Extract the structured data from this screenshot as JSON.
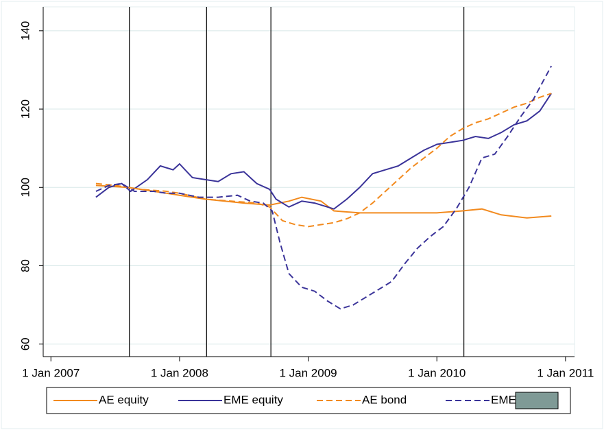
{
  "chart_data": {
    "type": "line",
    "xlim": [
      2006.94,
      2011.07
    ],
    "ylim": [
      56.8,
      146.1
    ],
    "xticks": [
      {
        "value": 2007,
        "label": "1 Jan 2007"
      },
      {
        "value": 2008,
        "label": "1 Jan 2008"
      },
      {
        "value": 2009,
        "label": "1 Jan 2009"
      },
      {
        "value": 2010,
        "label": "1 Jan 2010"
      },
      {
        "value": 2011,
        "label": "1 Jan 2011"
      }
    ],
    "yticks": [
      60,
      80,
      100,
      120,
      140
    ],
    "grid": true,
    "event_lines": [
      2007.61,
      2008.21,
      2008.71,
      2010.21
    ],
    "series": [
      {
        "name": "AE equity",
        "color": "#f28a1e",
        "dash": false,
        "x": [
          2007.35,
          2007.6,
          2008.0,
          2008.2,
          2008.5,
          2008.7,
          2008.85,
          2008.95,
          2009.1,
          2009.2,
          2009.4,
          2009.6,
          2009.8,
          2010.0,
          2010.2,
          2010.35,
          2010.5,
          2010.7,
          2010.89
        ],
        "values": [
          100.5,
          100,
          98,
          97,
          96,
          95.5,
          96.5,
          97.5,
          96.5,
          94,
          93.5,
          93.5,
          93.5,
          93.5,
          94,
          94.5,
          93,
          92.2,
          92.7
        ]
      },
      {
        "name": "EME equity",
        "color": "#3a3399",
        "dash": false,
        "x": [
          2007.35,
          2007.45,
          2007.55,
          2007.62,
          2007.75,
          2007.85,
          2007.95,
          2008.0,
          2008.1,
          2008.2,
          2008.3,
          2008.4,
          2008.5,
          2008.6,
          2008.7,
          2008.75,
          2008.85,
          2008.95,
          2009.05,
          2009.15,
          2009.2,
          2009.3,
          2009.4,
          2009.5,
          2009.6,
          2009.7,
          2009.8,
          2009.9,
          2010.0,
          2010.1,
          2010.2,
          2010.3,
          2010.4,
          2010.5,
          2010.6,
          2010.7,
          2010.8,
          2010.89
        ],
        "values": [
          97.5,
          100,
          101,
          99,
          102,
          105.5,
          104.5,
          106,
          102.5,
          102,
          101.5,
          103.5,
          104,
          101,
          99.5,
          97,
          95,
          96.5,
          96,
          95,
          94.5,
          97,
          100,
          103.5,
          104.5,
          105.5,
          107.5,
          109.5,
          111,
          111.5,
          112,
          113,
          112.5,
          114,
          116,
          117,
          119.5,
          124
        ]
      },
      {
        "name": "AE bond",
        "color": "#f28a1e",
        "dash": true,
        "x": [
          2007.35,
          2007.5,
          2007.7,
          2007.9,
          2008.0,
          2008.2,
          2008.4,
          2008.6,
          2008.7,
          2008.8,
          2008.9,
          2009.0,
          2009.1,
          2009.2,
          2009.3,
          2009.4,
          2009.5,
          2009.6,
          2009.7,
          2009.8,
          2009.9,
          2010.0,
          2010.1,
          2010.2,
          2010.3,
          2010.4,
          2010.5,
          2010.6,
          2010.7,
          2010.8,
          2010.89
        ],
        "values": [
          101,
          100.5,
          99.5,
          99,
          98.5,
          97,
          96.5,
          96,
          95,
          91.5,
          90.5,
          90,
          90.5,
          91,
          92,
          93.5,
          96,
          99,
          102,
          105,
          107.5,
          110,
          113,
          115,
          116.5,
          117.5,
          119,
          120.5,
          121.5,
          123,
          124
        ]
      },
      {
        "name": "EME bond",
        "color": "#3a3399",
        "dash": true,
        "x": [
          2007.35,
          2007.45,
          2007.55,
          2007.65,
          2007.8,
          2007.9,
          2008.0,
          2008.15,
          2008.3,
          2008.45,
          2008.55,
          2008.65,
          2008.72,
          2008.78,
          2008.85,
          2008.95,
          2009.05,
          2009.15,
          2009.25,
          2009.35,
          2009.45,
          2009.55,
          2009.65,
          2009.75,
          2009.85,
          2009.95,
          2010.05,
          2010.15,
          2010.25,
          2010.35,
          2010.45,
          2010.55,
          2010.65,
          2010.75,
          2010.89
        ],
        "values": [
          99,
          100.5,
          101,
          99,
          99,
          98.5,
          98.5,
          97.5,
          97.5,
          98,
          96.5,
          96,
          94,
          86,
          78,
          74.5,
          73.5,
          71,
          69,
          70,
          72,
          74,
          76,
          80.5,
          84.5,
          87.5,
          90,
          94.5,
          100,
          107.5,
          108.5,
          113,
          118,
          122.5,
          131
        ]
      }
    ]
  }
}
